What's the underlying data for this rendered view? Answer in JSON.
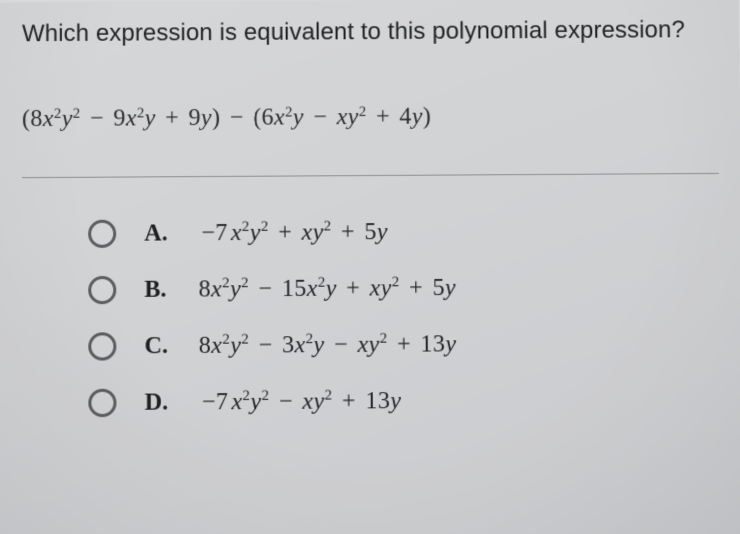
{
  "question": "Which expression is equivalent to this polynomial expression?",
  "expression_html": "<span class=\"up\">(8</span>x<sup>2</sup>y<sup>2</sup> <span class=\"minus\">−</span> <span class=\"up\">9</span>x<sup>2</sup>y <span class=\"plus\">+</span> <span class=\"up\">9</span>y<span class=\"up\">)</span> <span class=\"minus\">−</span> <span class=\"up\">(6</span>x<sup>2</sup>y <span class=\"minus\">−</span> xy<sup>2</sup> <span class=\"plus\">+</span> <span class=\"up\">4</span>y<span class=\"up\">)</span>",
  "choices": [
    {
      "label": "A.",
      "expr_html": "<span class=\"minus\">−7</span>x<sup>2</sup>y<sup>2</sup> <span class=\"plus\">+</span> xy<sup>2</sup> <span class=\"plus\">+</span> <span class=\"up\">5</span>y"
    },
    {
      "label": "B.",
      "expr_html": "<span class=\"up\">8</span>x<sup>2</sup>y<sup>2</sup> <span class=\"minus\">−</span> <span class=\"up\">15</span>x<sup>2</sup>y <span class=\"plus\">+</span> xy<sup>2</sup> <span class=\"plus\">+</span> <span class=\"up\">5</span>y"
    },
    {
      "label": "C.",
      "expr_html": "<span class=\"up\">8</span>x<sup>2</sup>y<sup>2</sup> <span class=\"minus\">−</span> <span class=\"up\">3</span>x<sup>2</sup>y <span class=\"minus\">−</span> xy<sup>2</sup> <span class=\"plus\">+</span> <span class=\"up\">13</span>y"
    },
    {
      "label": "D.",
      "expr_html": "<span class=\"minus\">−7</span>x<sup>2</sup>y<sup>2</sup> <span class=\"minus\">−</span> xy<sup>2</sup> <span class=\"plus\">+</span> <span class=\"up\">13</span>y"
    }
  ],
  "style": {
    "bg": "#d8d9db",
    "text": "#2a2a2c",
    "rule": "#8c8e91",
    "radio_border": "#5a5b5e",
    "question_fontsize": 24,
    "math_fontsize": 24
  }
}
